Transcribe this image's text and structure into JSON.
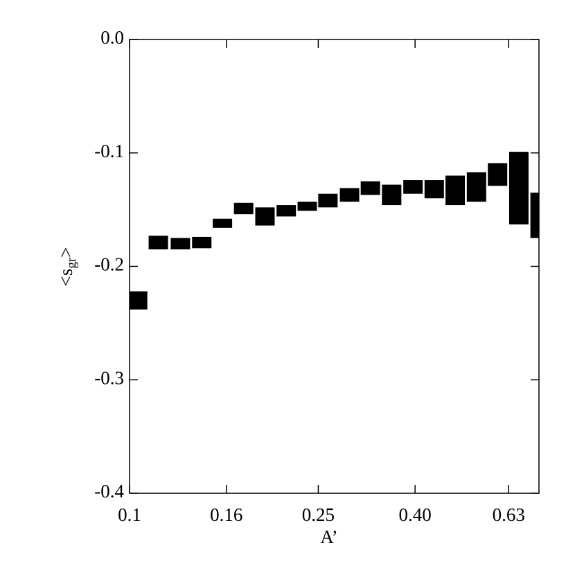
{
  "chart_data": {
    "type": "box",
    "xlabel": "A’",
    "ylabel": {
      "text": "<s",
      "subscript": "gr",
      "close": ">"
    },
    "xlog": true,
    "xlim": [
      0.1,
      0.73
    ],
    "ylim": [
      -0.4,
      0.0
    ],
    "xticks": [
      0.1,
      0.16,
      0.25,
      {
        "value": 0.4,
        "label": "0.40"
      },
      0.63
    ],
    "yticks": [
      {
        "value": 0,
        "label": "0.0"
      },
      -0.1,
      -0.2,
      -0.3,
      -0.4
    ],
    "color": "#000000",
    "x": [
      0.104,
      0.115,
      0.128,
      0.142,
      0.157,
      0.174,
      0.193,
      0.214,
      0.237,
      0.262,
      0.291,
      0.322,
      0.357,
      0.396,
      0.439,
      0.486,
      0.539,
      0.597,
      0.662,
      0.734
    ],
    "values": [
      -0.23,
      -0.179,
      -0.18,
      -0.179,
      -0.162,
      -0.149,
      -0.156,
      -0.151,
      -0.147,
      -0.142,
      -0.137,
      -0.131,
      -0.137,
      -0.13,
      -0.132,
      -0.133,
      -0.13,
      -0.119,
      -0.131,
      -0.155
    ],
    "errors": [
      0.008,
      0.006,
      0.005,
      0.005,
      0.004,
      0.005,
      0.008,
      0.005,
      0.004,
      0.006,
      0.006,
      0.006,
      0.009,
      0.006,
      0.008,
      0.013,
      0.013,
      0.01,
      0.032,
      0.02
    ]
  }
}
